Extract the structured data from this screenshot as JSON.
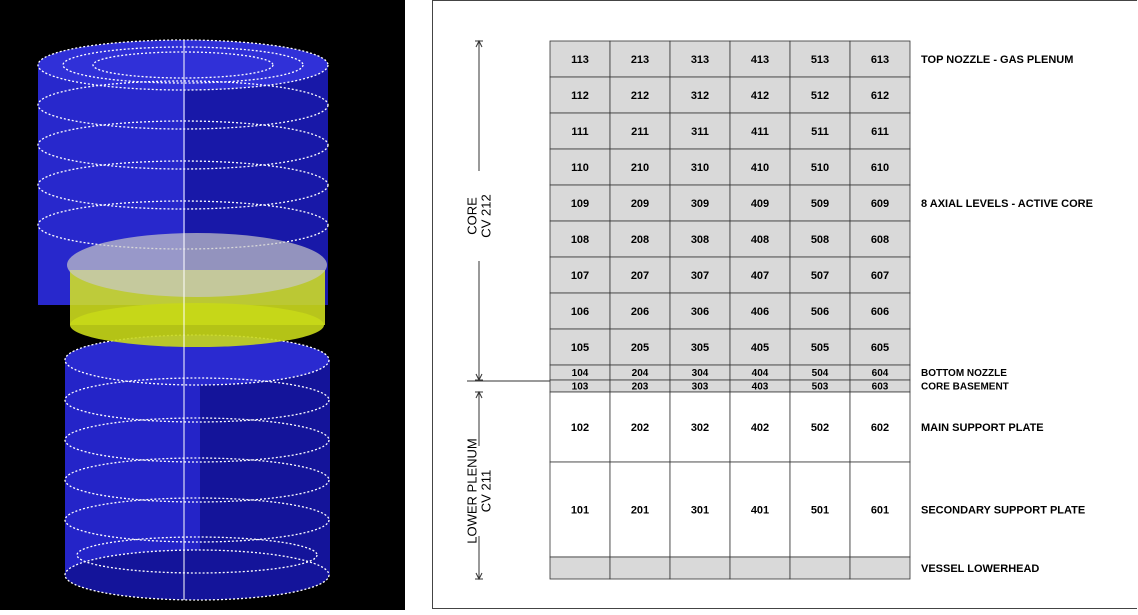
{
  "rows": [
    {
      "cells": [
        113,
        213,
        313,
        413,
        513,
        613
      ],
      "label": "TOP NOZZLE - GAS PLENUM"
    },
    {
      "cells": [
        112,
        212,
        312,
        412,
        512,
        612
      ]
    },
    {
      "cells": [
        111,
        211,
        311,
        411,
        511,
        611
      ]
    },
    {
      "cells": [
        110,
        210,
        310,
        410,
        510,
        610
      ]
    },
    {
      "cells": [
        109,
        209,
        309,
        409,
        509,
        609
      ],
      "label": "8 AXIAL LEVELS - ACTIVE CORE"
    },
    {
      "cells": [
        108,
        208,
        308,
        408,
        508,
        608
      ]
    },
    {
      "cells": [
        107,
        207,
        307,
        407,
        507,
        607
      ]
    },
    {
      "cells": [
        106,
        206,
        306,
        406,
        506,
        606
      ]
    },
    {
      "cells": [
        105,
        205,
        305,
        405,
        505,
        605
      ]
    },
    {
      "cells": [
        104,
        204,
        304,
        404,
        504,
        604
      ],
      "label": "BOTTOM NOZZLE"
    },
    {
      "cells": [
        103,
        203,
        303,
        403,
        503,
        603
      ],
      "label": "CORE BASEMENT"
    },
    {
      "cells": [
        102,
        202,
        302,
        402,
        502,
        602
      ],
      "label": "MAIN SUPPORT PLATE"
    },
    {
      "cells": [
        101,
        201,
        301,
        401,
        501,
        601
      ],
      "label": "SECONDARY SUPPORT PLATE"
    },
    {
      "label": "VESSEL LOWERHEAD"
    }
  ],
  "sections": [
    {
      "lines": [
        "CORE",
        "CV 212"
      ]
    },
    {
      "lines": [
        "LOWER PLENUM",
        "CV 211"
      ]
    }
  ]
}
